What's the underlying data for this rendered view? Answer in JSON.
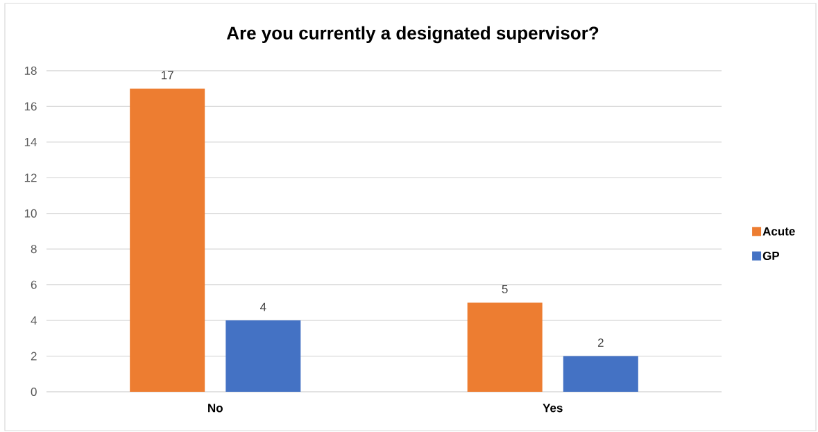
{
  "chart_data": {
    "type": "bar",
    "title": "Are you currently a designated supervisor?",
    "categories": [
      "No",
      "Yes"
    ],
    "series": [
      {
        "name": "Acute",
        "color": "#ed7d31",
        "values": [
          17,
          5
        ]
      },
      {
        "name": "GP",
        "color": "#4472c4",
        "values": [
          4,
          2
        ]
      }
    ],
    "ylim": [
      0,
      18
    ],
    "yticks": [
      0,
      2,
      4,
      6,
      8,
      10,
      12,
      14,
      16,
      18
    ],
    "grid": "y",
    "legend": "right",
    "data_labels": true
  }
}
